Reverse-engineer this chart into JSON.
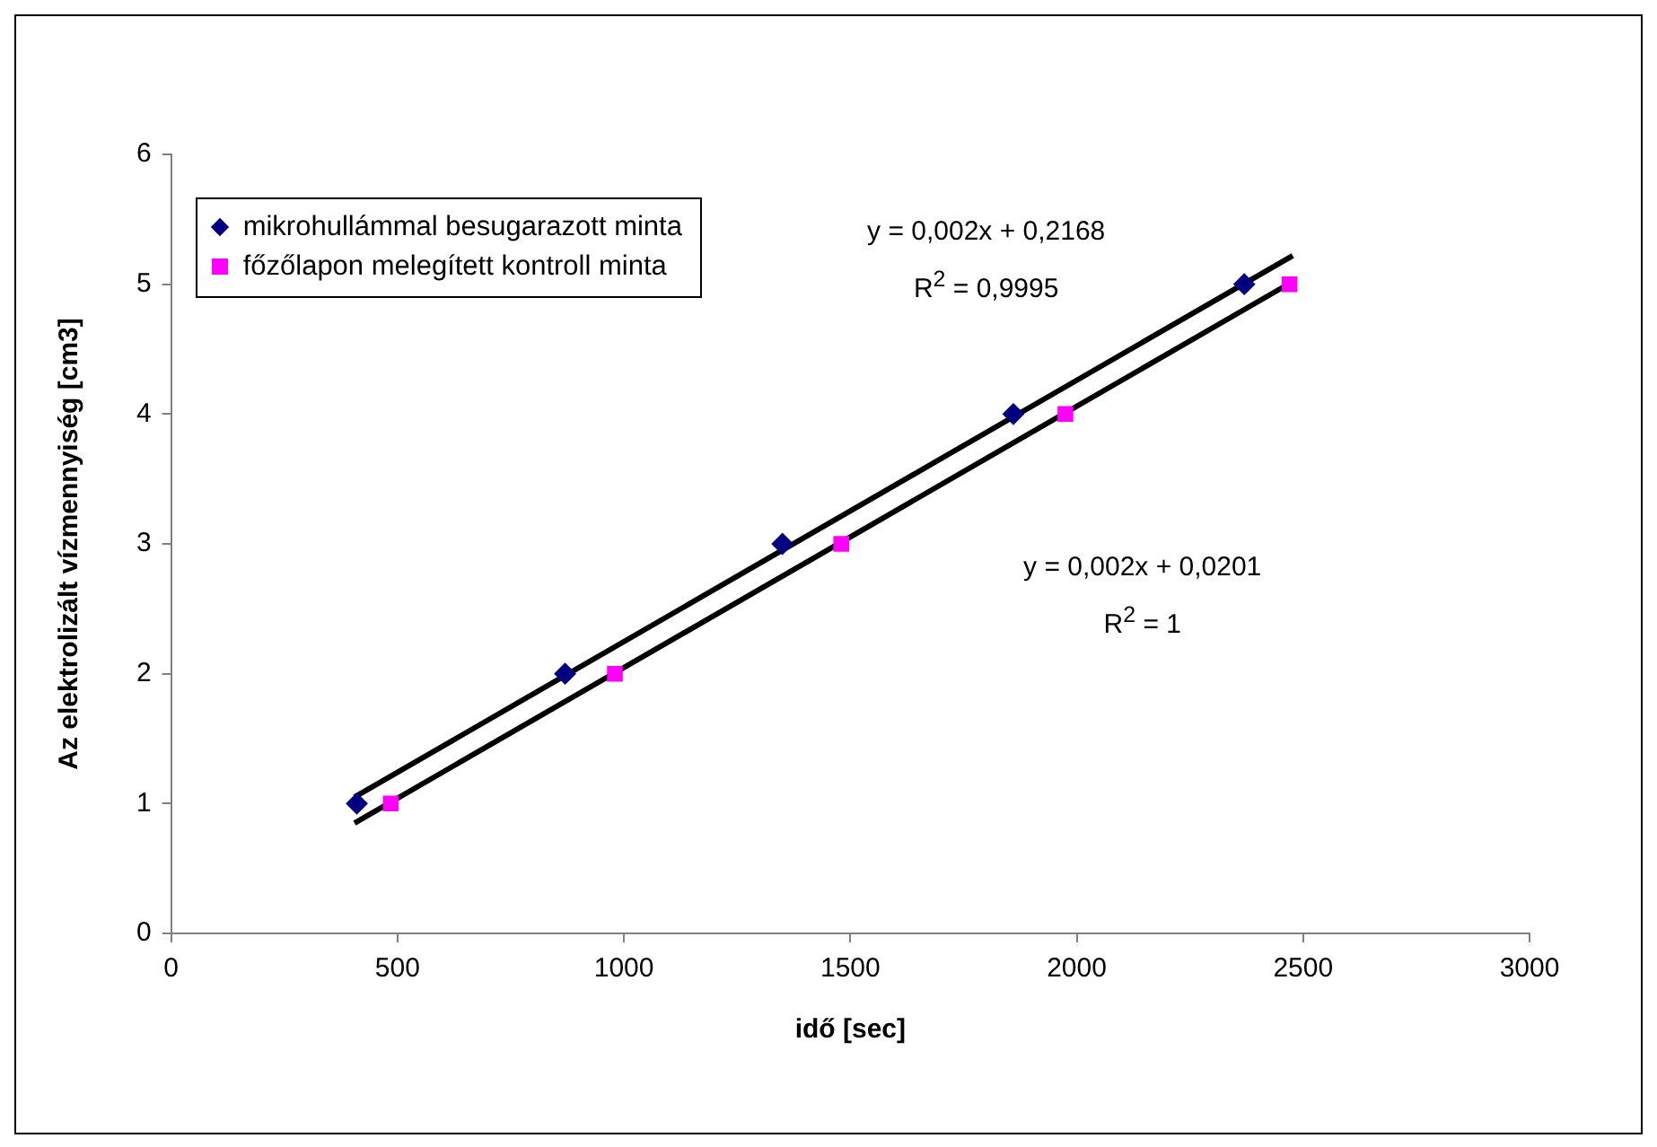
{
  "chart_data": {
    "type": "scatter",
    "xlabel": "idő [sec]",
    "ylabel": "Az elektrolizált vízmennyiség [cm3]",
    "xlim": [
      0,
      3000
    ],
    "xticks": [
      0,
      500,
      1000,
      1500,
      2000,
      2500,
      3000
    ],
    "ylim": [
      0,
      6
    ],
    "yticks": [
      0,
      1,
      2,
      3,
      4,
      5,
      6
    ],
    "grid": false,
    "legend": "top left",
    "series": [
      {
        "name": "mikrohullámmal besugarazott minta",
        "color": "#000080",
        "marker": "diamond",
        "x": [
          410,
          870,
          1350,
          1860,
          2370
        ],
        "values": [
          1,
          2,
          3,
          4,
          5
        ]
      },
      {
        "name": "főzőlapon melegített kontroll minta",
        "color": "#ff00ff",
        "marker": "square",
        "x": [
          485,
          980,
          1480,
          1975,
          2470
        ],
        "values": [
          1,
          2,
          3,
          4,
          5
        ]
      },
      {
        "type": "line",
        "color": "#000000",
        "marker": "none",
        "x": [
          405,
          2477
        ],
        "values": [
          1.05,
          5.22
        ]
      },
      {
        "type": "line",
        "color": "#000000",
        "marker": "none",
        "x": [
          405,
          2477
        ],
        "values": [
          0.85,
          5.02
        ]
      }
    ],
    "annotations": [
      "y = 0,002x + 0,2168",
      "R$^{2}$ = 0,9995",
      "y = 0,002x + 0,0201",
      "R$^{2}$ = 1"
    ]
  }
}
